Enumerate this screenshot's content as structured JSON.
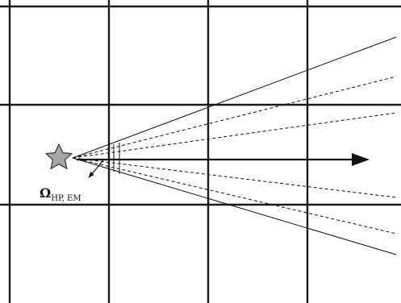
{
  "label": {
    "symbol": "Ω",
    "subscript": "HP, EM"
  },
  "icons": {
    "source": "star-icon"
  },
  "colors": {
    "grid": "#1a1a1a",
    "rays": "#111111",
    "star_fill": "#a6a6a6",
    "star_stroke": "#333333",
    "background": "#ffffff"
  }
}
